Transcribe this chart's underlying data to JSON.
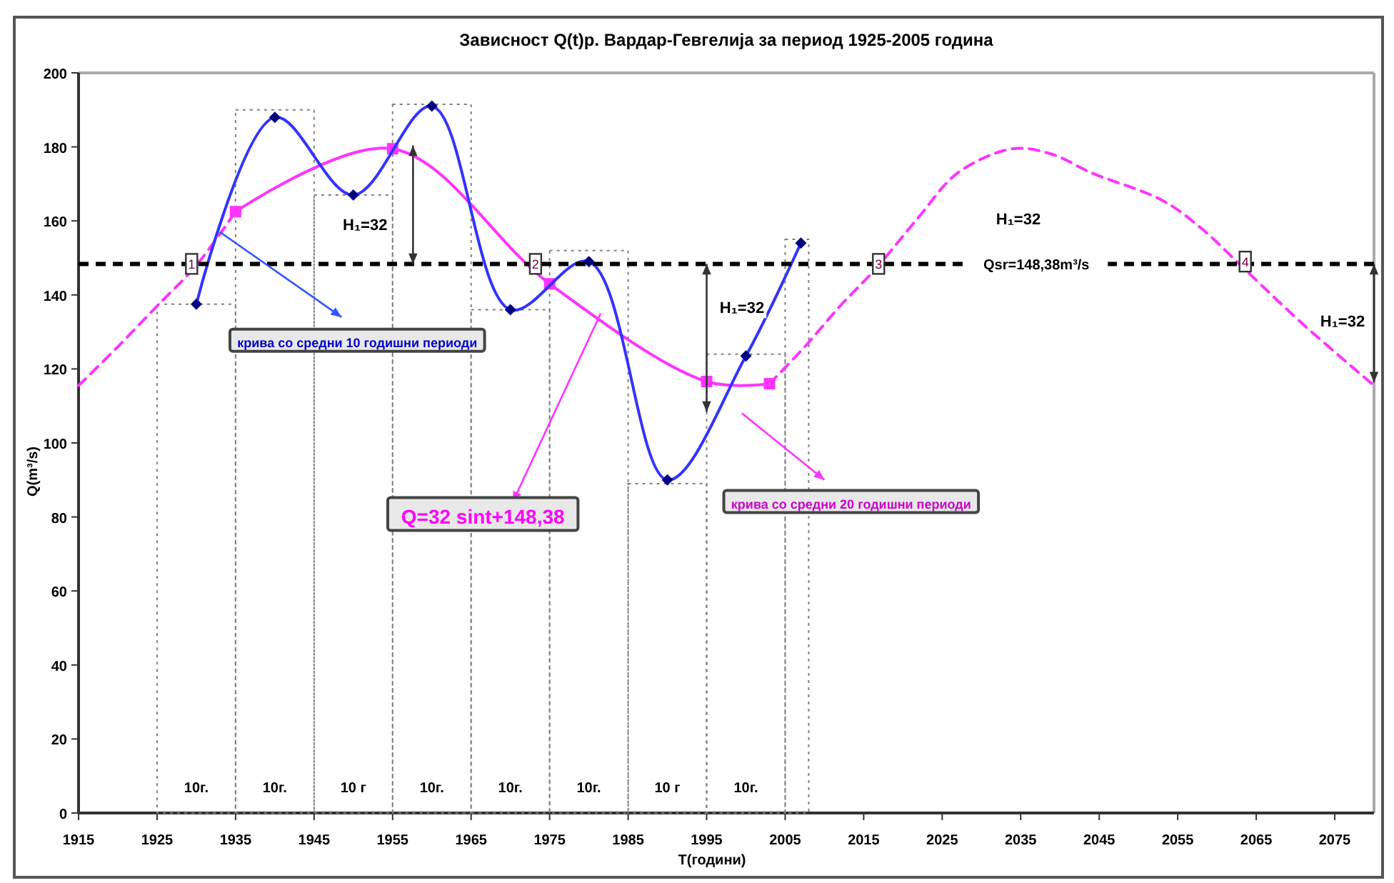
{
  "chart_data": {
    "type": "line",
    "title": "Зависност Q(t)р. Вардар-Гевгелија за период 1925-2005 година",
    "xlabel": "T(години)",
    "ylabel": "Q(m³/s)",
    "xlim": [
      1915,
      2080
    ],
    "xticks": [
      1915,
      1925,
      1935,
      1945,
      1955,
      1965,
      1975,
      1985,
      1995,
      2005,
      2015,
      2025,
      2035,
      2045,
      2055,
      2065,
      2075
    ],
    "ylim": [
      0,
      200
    ],
    "yticks": [
      0,
      20,
      40,
      60,
      80,
      100,
      120,
      140,
      160,
      180,
      200
    ],
    "series": [
      {
        "type": "histogram",
        "color": "#808080",
        "line_style": "dotted",
        "bins": [
          1925,
          1935,
          1945,
          1955,
          1965,
          1975,
          1985,
          1995,
          2005,
          2008
        ],
        "values": [
          137.5,
          190,
          167,
          191.5,
          136,
          152,
          89,
          124,
          155
        ]
      },
      {
        "color": "#ff33ff",
        "line_style": "dashed",
        "marker": "none",
        "x": [
          1915,
          1920,
          1925,
          1930,
          1935
        ],
        "values": [
          115.5,
          126,
          137,
          148,
          162.5
        ]
      },
      {
        "color": "#ff33ff",
        "line_style": "dashed",
        "marker": "none",
        "x": [
          2003,
          2007.5,
          2012,
          2016.5,
          2022,
          2027,
          2034,
          2039,
          2044,
          2053,
          2058,
          2063.5,
          2071,
          2080
        ],
        "values": [
          116,
          126,
          137,
          147,
          161,
          173,
          179.5,
          178,
          173,
          165.6,
          158,
          147,
          132,
          115.5
        ]
      },
      {
        "color": "#ff33ff",
        "line_style": "solid",
        "marker": "square",
        "x": [
          1935,
          1955,
          1975,
          1995,
          2003
        ],
        "values": [
          162.5,
          179.5,
          143,
          116.6,
          116
        ]
      },
      {
        "color": "#3333ff",
        "line_style": "solid",
        "marker": "diamond",
        "x": [
          1930,
          1940,
          1950,
          1960,
          1970,
          1980,
          1990,
          2000,
          2007
        ],
        "values": [
          137.5,
          188,
          167,
          191,
          136,
          149,
          90,
          123.5,
          154
        ]
      }
    ],
    "ref_lines": [
      {
        "axis": "y",
        "value": 148.38,
        "label": "Qsr=148,38m³/s",
        "color": "#000000",
        "line_style": "dashed"
      }
    ],
    "annotations": [
      "крива со средни 10 годишни периоди",
      {
        "text": "Q=32 sint+148,38",
        "x": 1981.5,
        "y": 135
      },
      "крива со средни 20 годишни периоди",
      "H₁=32",
      "H₁=32",
      "H₁=32",
      "H₁=32",
      {
        "text": "1",
        "x": 1929.4,
        "y": 148.38
      },
      {
        "text": "2",
        "x": 1973.2,
        "y": 148.38
      },
      {
        "text": "3",
        "x": 2016.9,
        "y": 148.38
      },
      {
        "text": "4",
        "x": 2063.6,
        "y": 149
      },
      "10г.",
      "10г.",
      "10 г",
      "10г.",
      "10г.",
      "10г.",
      "10 г",
      "10г."
    ]
  }
}
